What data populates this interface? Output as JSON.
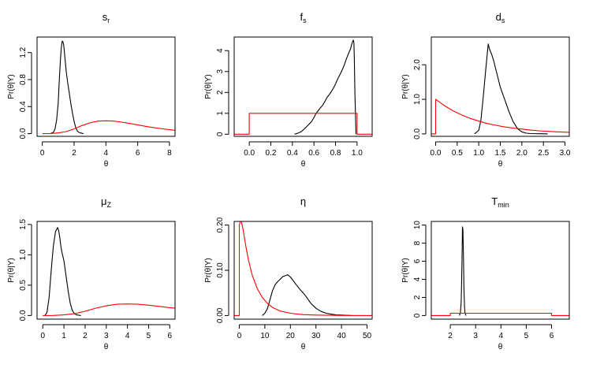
{
  "page": {
    "background": "#ffffff"
  },
  "colors": {
    "posterior": "#000000",
    "prior": "#ff0000"
  },
  "chart_data": [
    {
      "type": "line",
      "grid": false,
      "title": {
        "main": "s",
        "sub": "r"
      },
      "xlabel": "θ",
      "ylabel": "Pr(θ|Y)",
      "xlim": [
        -0.33,
        8.35
      ],
      "ylim": [
        -0.04,
        1.43
      ],
      "xticks": [
        0,
        2,
        4,
        6,
        8
      ],
      "xtick_labels": [
        "0",
        "2",
        "4",
        "6",
        "8"
      ],
      "yticks": [
        0,
        0.4,
        0.8,
        1.2
      ],
      "ytick_labels": [
        "0.0",
        "0.4",
        "0.8",
        "1.2"
      ],
      "series": [
        {
          "color": "#000000",
          "x": [
            0.5,
            0.7,
            0.8,
            0.9,
            1.0,
            1.05,
            1.1,
            1.15,
            1.2,
            1.25,
            1.3,
            1.35,
            1.4,
            1.5,
            1.6,
            1.7,
            1.8,
            1.9,
            2.0,
            2.1,
            2.2,
            2.3,
            2.4,
            2.6
          ],
          "y": [
            0,
            0.02,
            0.07,
            0.2,
            0.45,
            0.7,
            0.92,
            1.12,
            1.28,
            1.37,
            1.36,
            1.3,
            1.18,
            0.93,
            0.75,
            0.6,
            0.44,
            0.3,
            0.18,
            0.09,
            0.04,
            0.02,
            0.01,
            0
          ]
        },
        {
          "color": "#ff0000",
          "x": [
            0,
            0.5,
            1,
            1.5,
            2,
            2.5,
            3,
            3.5,
            4,
            4.5,
            5,
            5.5,
            6,
            6.5,
            7,
            7.5,
            8,
            8.35
          ],
          "y": [
            0,
            0.001,
            0.01,
            0.03,
            0.07,
            0.12,
            0.16,
            0.185,
            0.19,
            0.185,
            0.17,
            0.15,
            0.13,
            0.108,
            0.09,
            0.073,
            0.058,
            0.05
          ]
        }
      ]
    },
    {
      "type": "line",
      "grid": false,
      "title": {
        "main": "f",
        "sub": "s"
      },
      "xlabel": "θ",
      "ylabel": "Pr(θ|Y)",
      "xlim": [
        -0.14,
        1.14
      ],
      "ylim": [
        -0.1,
        4.65
      ],
      "xticks": [
        0,
        0.2,
        0.4,
        0.6,
        0.8,
        1.0
      ],
      "xtick_labels": [
        "0.0",
        "0.2",
        "0.4",
        "0.6",
        "0.8",
        "1.0"
      ],
      "yticks": [
        0,
        1,
        2,
        3,
        4
      ],
      "ytick_labels": [
        "0",
        "1",
        "2",
        "3",
        "4"
      ],
      "series": [
        {
          "color": "#000000",
          "x": [
            0.42,
            0.45,
            0.48,
            0.5,
            0.52,
            0.55,
            0.58,
            0.6,
            0.62,
            0.65,
            0.68,
            0.7,
            0.72,
            0.75,
            0.78,
            0.8,
            0.82,
            0.85,
            0.88,
            0.9,
            0.92,
            0.94,
            0.95,
            0.96,
            0.965,
            0.97,
            0.975,
            0.98,
            0.99
          ],
          "y": [
            0,
            0.05,
            0.12,
            0.2,
            0.3,
            0.45,
            0.62,
            0.8,
            1.0,
            1.2,
            1.38,
            1.55,
            1.75,
            1.95,
            2.2,
            2.4,
            2.65,
            2.95,
            3.3,
            3.6,
            3.85,
            4.1,
            4.3,
            4.45,
            4.5,
            4.4,
            3.6,
            2.0,
            0
          ]
        },
        {
          "color": "#ff0000",
          "x": [
            -0.14,
            0,
            0,
            1,
            1,
            1.14
          ],
          "y": [
            0,
            0,
            1,
            1,
            0,
            0
          ]
        }
      ]
    },
    {
      "type": "line",
      "grid": false,
      "title": {
        "main": "d",
        "sub": "s"
      },
      "xlabel": "θ",
      "ylabel": "Pr(θ|Y)",
      "xlim": [
        -0.1,
        3.1
      ],
      "ylim": [
        -0.07,
        2.8
      ],
      "xticks": [
        0,
        0.5,
        1,
        1.5,
        2,
        2.5,
        3
      ],
      "xtick_labels": [
        "0.0",
        "0.5",
        "1.0",
        "1.5",
        "2.0",
        "2.5",
        "3.0"
      ],
      "yticks": [
        0,
        1,
        2
      ],
      "ytick_labels": [
        "0.0",
        "1.0",
        "2.0"
      ],
      "series": [
        {
          "color": "#000000",
          "x": [
            0.9,
            1.0,
            1.05,
            1.1,
            1.15,
            1.2,
            1.22,
            1.25,
            1.3,
            1.35,
            1.4,
            1.45,
            1.5,
            1.6,
            1.7,
            1.8,
            1.9,
            2.0,
            2.1,
            2.2,
            2.4,
            2.6
          ],
          "y": [
            0,
            0.1,
            0.4,
            1.0,
            1.7,
            2.35,
            2.6,
            2.45,
            2.3,
            2.1,
            1.85,
            1.6,
            1.35,
            1.0,
            0.65,
            0.35,
            0.15,
            0.06,
            0.02,
            0.01,
            0.005,
            0
          ]
        },
        {
          "color": "#ff0000",
          "x": [
            -0.1,
            0,
            0,
            0.2,
            0.4,
            0.6,
            0.8,
            1.0,
            1.2,
            1.4,
            1.6,
            1.8,
            2.0,
            2.2,
            2.4,
            2.6,
            2.8,
            3.0,
            3.1
          ],
          "y": [
            0,
            0,
            1.0,
            0.82,
            0.67,
            0.55,
            0.45,
            0.37,
            0.3,
            0.25,
            0.2,
            0.17,
            0.14,
            0.11,
            0.09,
            0.074,
            0.06,
            0.05,
            0.045
          ]
        }
      ]
    },
    {
      "type": "line",
      "grid": false,
      "title": {
        "main": "μ",
        "sub": "Z"
      },
      "xlabel": "θ",
      "ylabel": "Pr(θ|Y)",
      "xlim": [
        -0.27,
        6.25
      ],
      "ylim": [
        -0.06,
        1.55
      ],
      "xticks": [
        0,
        1,
        2,
        3,
        4,
        5,
        6
      ],
      "xtick_labels": [
        "0",
        "1",
        "2",
        "3",
        "4",
        "5",
        "6"
      ],
      "yticks": [
        0,
        0.5,
        1.0,
        1.5
      ],
      "ytick_labels": [
        "0.0",
        "0.5",
        "1.0",
        "1.5"
      ],
      "series": [
        {
          "color": "#000000",
          "x": [
            0.1,
            0.2,
            0.3,
            0.4,
            0.5,
            0.6,
            0.7,
            0.75,
            0.8,
            0.85,
            0.9,
            1.0,
            1.1,
            1.2,
            1.3,
            1.4,
            1.5,
            1.6,
            1.7,
            1.8
          ],
          "y": [
            0,
            0.05,
            0.3,
            0.75,
            1.15,
            1.38,
            1.45,
            1.4,
            1.3,
            1.15,
            1.05,
            0.9,
            0.65,
            0.4,
            0.2,
            0.08,
            0.03,
            0.01,
            0.005,
            0
          ]
        },
        {
          "color": "#ff0000",
          "x": [
            0,
            0.5,
            1,
            1.5,
            2,
            2.5,
            3,
            3.5,
            4,
            4.5,
            5,
            5.5,
            6,
            6.25
          ],
          "y": [
            0,
            0.001,
            0.01,
            0.03,
            0.07,
            0.12,
            0.16,
            0.185,
            0.19,
            0.185,
            0.17,
            0.15,
            0.13,
            0.12
          ]
        }
      ]
    },
    {
      "type": "line",
      "grid": false,
      "title": {
        "main": "η",
        "sub": ""
      },
      "xlabel": "θ",
      "ylabel": "Pr(θ|Y)",
      "xlim": [
        -2,
        52
      ],
      "ylim": [
        -0.008,
        0.208
      ],
      "xticks": [
        0,
        10,
        20,
        30,
        40,
        50
      ],
      "xtick_labels": [
        "0",
        "10",
        "20",
        "30",
        "40",
        "50"
      ],
      "yticks": [
        0,
        0.1,
        0.2
      ],
      "ytick_labels": [
        "0.00",
        "0.10",
        "0.20"
      ],
      "series": [
        {
          "color": "#000000",
          "x": [
            9,
            10,
            11,
            12,
            13,
            14,
            15,
            16,
            17,
            18,
            19,
            20,
            21,
            22,
            23,
            24,
            25,
            26,
            27,
            28,
            30,
            32,
            34,
            36,
            38,
            40,
            44
          ],
          "y": [
            0,
            0.005,
            0.015,
            0.035,
            0.055,
            0.068,
            0.075,
            0.08,
            0.086,
            0.088,
            0.09,
            0.085,
            0.078,
            0.07,
            0.063,
            0.056,
            0.05,
            0.043,
            0.035,
            0.027,
            0.016,
            0.009,
            0.005,
            0.003,
            0.0015,
            0.001,
            0
          ]
        },
        {
          "color": "#ff0000",
          "x": [
            -2,
            0,
            0,
            0.4,
            0.8,
            1.5,
            2.5,
            3.5,
            5,
            7,
            9,
            11,
            13,
            16,
            20,
            25,
            30,
            40,
            52
          ],
          "y": [
            0,
            0,
            0.2,
            0.208,
            0.208,
            0.19,
            0.155,
            0.125,
            0.09,
            0.06,
            0.04,
            0.027,
            0.018,
            0.01,
            0.005,
            0.002,
            0.001,
            0.0002,
            0
          ]
        }
      ]
    },
    {
      "type": "line",
      "grid": false,
      "title": {
        "main": "T",
        "sub": "min"
      },
      "xlabel": "θ",
      "ylabel": "Pr(θ|Y)",
      "xlim": [
        1.25,
        6.7
      ],
      "ylim": [
        -0.4,
        10.4
      ],
      "xticks": [
        2,
        3,
        4,
        5,
        6
      ],
      "xtick_labels": [
        "2",
        "3",
        "4",
        "5",
        "6"
      ],
      "yticks": [
        0,
        2,
        4,
        6,
        8,
        10
      ],
      "ytick_labels": [
        "0",
        "2",
        "4",
        "6",
        "8",
        "10"
      ],
      "series": [
        {
          "color": "#000000",
          "x": [
            2.36,
            2.4,
            2.43,
            2.45,
            2.47,
            2.48,
            2.5,
            2.52,
            2.54,
            2.56,
            2.58,
            2.62
          ],
          "y": [
            0,
            0.3,
            1.5,
            4.0,
            7.5,
            9.8,
            9.5,
            6.5,
            3.0,
            1.0,
            0.3,
            0
          ]
        },
        {
          "color": "#ff0000",
          "x": [
            1.25,
            2,
            2,
            6,
            6,
            6.7
          ],
          "y": [
            0,
            0,
            0.25,
            0.25,
            0,
            0
          ]
        }
      ]
    }
  ]
}
